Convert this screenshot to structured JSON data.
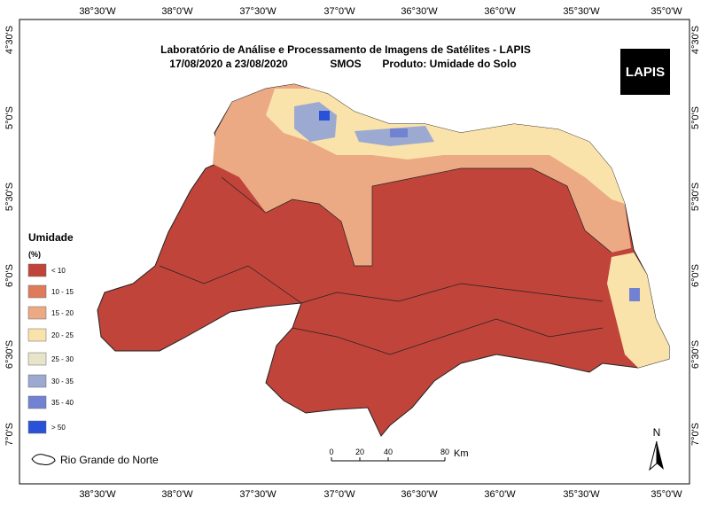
{
  "header": {
    "title": "Laboratório de Análise e Processamento de Imagens de Satélites - LAPIS",
    "dates": "17/08/2020  a  23/08/2020",
    "sensor": "SMOS",
    "product": "Produto: Umidade do Solo"
  },
  "logo": "LAPIS",
  "longitude_labels": [
    "38°30'W",
    "38°0'W",
    "37°30'W",
    "37°0'W",
    "36°30'W",
    "36°0'W",
    "35°30'W",
    "35°0'W"
  ],
  "latitude_labels": [
    "4°30'S",
    "5°0'S",
    "5°30'S",
    "6°0'S",
    "6°30'S",
    "7°0'S"
  ],
  "legend": {
    "title": "Umidade",
    "unit": "(%)",
    "classes": [
      {
        "label": "< 10",
        "color": "#c0443a"
      },
      {
        "label": "10 - 15",
        "color": "#dd7b5b"
      },
      {
        "label": "15 - 20",
        "color": "#eba984"
      },
      {
        "label": "20 - 25",
        "color": "#fae2ab"
      },
      {
        "label": "25 - 30",
        "color": "#e7e4c9"
      },
      {
        "label": "30 - 35",
        "color": "#9ca9d1"
      },
      {
        "label": "35 - 40",
        "color": "#7282d2"
      },
      {
        "label": "> 50",
        "color": "#2a52d8"
      }
    ]
  },
  "scale_bar": {
    "ticks": [
      "0",
      "20",
      "40",
      "80"
    ],
    "unit": "Km"
  },
  "north": "N",
  "boundary_legend": "Rio Grande do Norte"
}
